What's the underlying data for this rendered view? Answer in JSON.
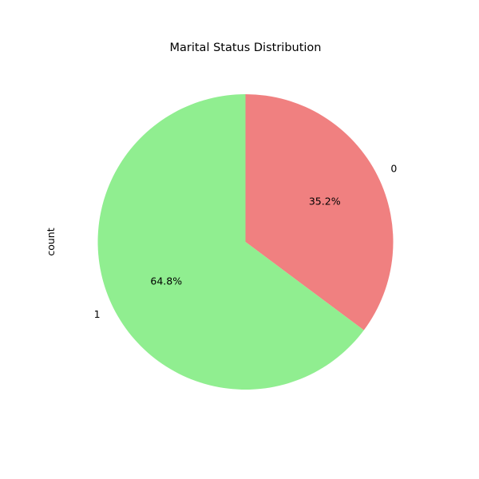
{
  "chart_data": {
    "type": "pie",
    "title": "Marital Status Distribution",
    "ylabel": "count",
    "categories": [
      "0",
      "1"
    ],
    "values": [
      35.2,
      64.8
    ],
    "pct_labels": [
      "35.2%",
      "64.8%"
    ],
    "colors": [
      "#f08080",
      "#90ee90"
    ],
    "start_angle_deg": 90,
    "direction": "clockwise",
    "legend": "none"
  }
}
